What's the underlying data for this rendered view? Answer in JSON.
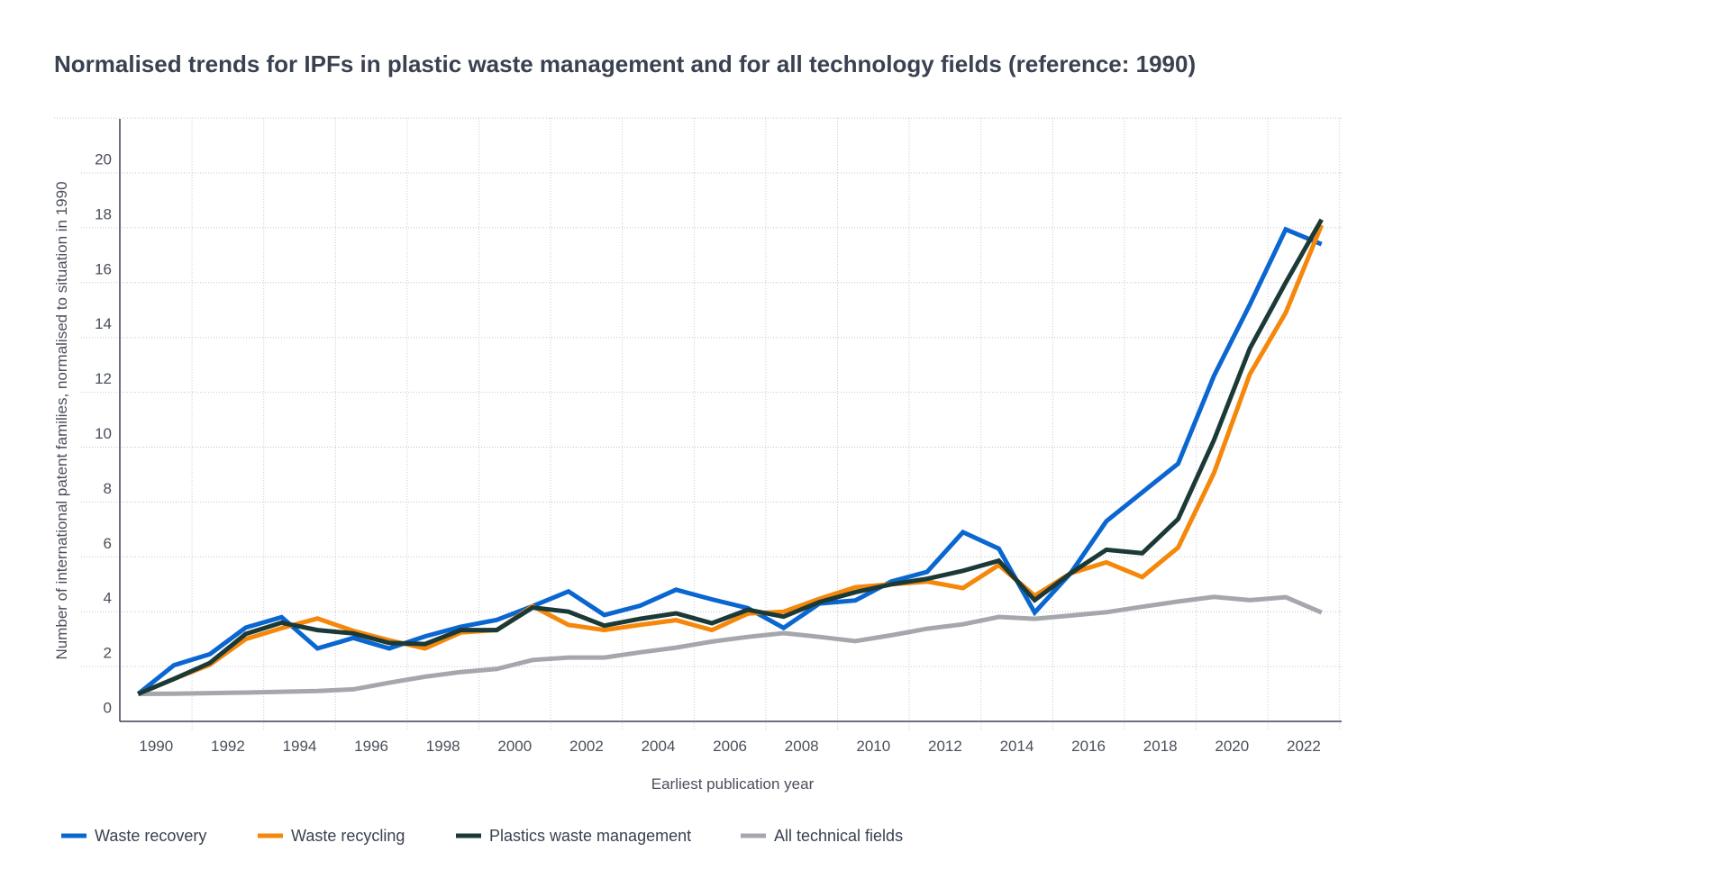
{
  "chart_data": {
    "type": "line",
    "title": "Normalised trends for IPFs in plastic waste management and for all technology fields (reference: 1990)",
    "xlabel": "Earliest publication year",
    "ylabel": "Number of international patent families, normalised to situation in 1990",
    "ylim": [
      0,
      22
    ],
    "yticks": [
      0,
      2,
      4,
      6,
      8,
      10,
      12,
      14,
      16,
      18,
      20
    ],
    "xtick_labels": [
      "1990",
      "1992",
      "1994",
      "1996",
      "1998",
      "2000",
      "2002",
      "2004",
      "2006",
      "2008",
      "2010",
      "2012",
      "2014",
      "2016",
      "2018",
      "2020",
      "2022"
    ],
    "grid": true,
    "legend_position": "bottom-left",
    "x": [
      1990,
      1991,
      1992,
      1993,
      1994,
      1995,
      1996,
      1997,
      1998,
      1999,
      2000,
      2001,
      2002,
      2003,
      2004,
      2005,
      2006,
      2007,
      2008,
      2009,
      2010,
      2011,
      2012,
      2013,
      2014,
      2015,
      2016,
      2017,
      2018,
      2019,
      2020,
      2021,
      2022,
      2023
    ],
    "series": [
      {
        "name": "Waste recovery",
        "color": "#0a66d0",
        "values": [
          1.0,
          2.05,
          2.45,
          3.42,
          3.8,
          2.66,
          3.04,
          2.66,
          3.1,
          3.45,
          3.7,
          4.2,
          4.74,
          3.88,
          4.22,
          4.8,
          4.45,
          4.13,
          3.41,
          4.3,
          4.41,
          5.1,
          5.45,
          6.9,
          6.3,
          3.97,
          5.4,
          7.3,
          8.35,
          9.4,
          12.6,
          15.2,
          17.94,
          17.4
        ]
      },
      {
        "name": "Waste recycling",
        "color": "#f5870a",
        "values": [
          1.0,
          1.55,
          2.07,
          3.0,
          3.4,
          3.75,
          3.3,
          2.96,
          2.66,
          3.24,
          3.33,
          4.2,
          3.52,
          3.33,
          3.52,
          3.69,
          3.33,
          3.93,
          4.0,
          4.47,
          4.89,
          5.0,
          5.1,
          4.86,
          5.7,
          4.58,
          5.4,
          5.8,
          5.26,
          6.34,
          9.06,
          12.66,
          14.9,
          18.1
        ]
      },
      {
        "name": "Plastics waste management",
        "color": "#1b3a37",
        "values": [
          1.0,
          1.55,
          2.13,
          3.19,
          3.6,
          3.33,
          3.21,
          2.86,
          2.82,
          3.33,
          3.33,
          4.15,
          4.0,
          3.49,
          3.74,
          3.94,
          3.58,
          4.07,
          3.82,
          4.35,
          4.71,
          5.0,
          5.2,
          5.49,
          5.86,
          4.42,
          5.4,
          6.26,
          6.13,
          7.38,
          10.26,
          13.6,
          16.0,
          18.3
        ]
      },
      {
        "name": "All technical fields",
        "color": "#a6a7ad",
        "values": [
          1.0,
          1.01,
          1.03,
          1.05,
          1.08,
          1.11,
          1.17,
          1.41,
          1.63,
          1.8,
          1.91,
          2.24,
          2.33,
          2.33,
          2.52,
          2.69,
          2.91,
          3.08,
          3.22,
          3.08,
          2.93,
          3.14,
          3.38,
          3.54,
          3.81,
          3.74,
          3.86,
          3.98,
          4.18,
          4.37,
          4.54,
          4.42,
          4.53,
          3.97
        ]
      }
    ]
  }
}
